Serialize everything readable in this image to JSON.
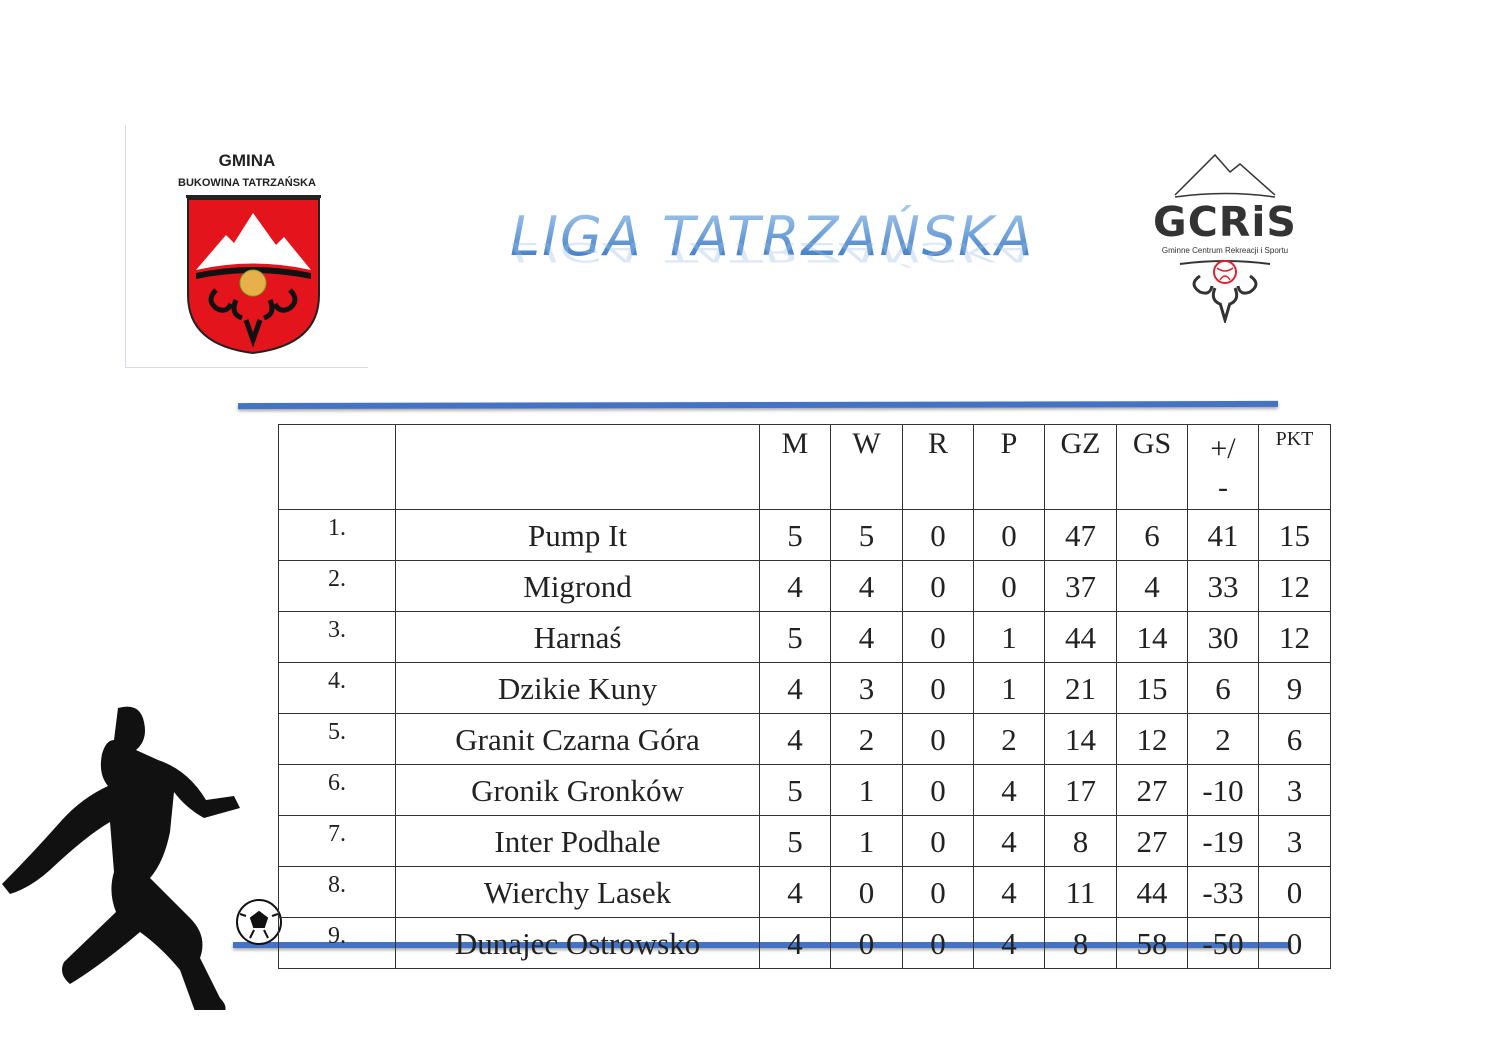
{
  "logos": {
    "left": {
      "line1": "GMINA",
      "line2": "BUKOWINA TATRZAŃSKA"
    },
    "right": {
      "name": "GCRiS",
      "subtitle": "Gminne Centrum Rekreacji i Sportu"
    }
  },
  "title": "LIGA TATRZAŃSKA",
  "colors": {
    "accent": "#4472c4",
    "title": "#2f6fbf",
    "crest": "#e3141b"
  },
  "table": {
    "headers": [
      "",
      "",
      "M",
      "W",
      "R",
      "P",
      "GZ",
      "GS",
      "+/\n-",
      "PKT"
    ],
    "rows": [
      {
        "pos": "1.",
        "team": "Pump It",
        "m": "5",
        "w": "5",
        "r": "0",
        "p": "0",
        "gz": "47",
        "gs": "6",
        "diff": "41",
        "pkt": "15"
      },
      {
        "pos": "2.",
        "team": "Migrond",
        "m": "4",
        "w": "4",
        "r": "0",
        "p": "0",
        "gz": "37",
        "gs": "4",
        "diff": "33",
        "pkt": "12"
      },
      {
        "pos": "3.",
        "team": "Harnaś",
        "m": "5",
        "w": "4",
        "r": "0",
        "p": "1",
        "gz": "44",
        "gs": "14",
        "diff": "30",
        "pkt": "12"
      },
      {
        "pos": "4.",
        "team": "Dzikie Kuny",
        "m": "4",
        "w": "3",
        "r": "0",
        "p": "1",
        "gz": "21",
        "gs": "15",
        "diff": "6",
        "pkt": "9"
      },
      {
        "pos": "5.",
        "team": "Granit Czarna Góra",
        "m": "4",
        "w": "2",
        "r": "0",
        "p": "2",
        "gz": "14",
        "gs": "12",
        "diff": "2",
        "pkt": "6"
      },
      {
        "pos": "6.",
        "team": "Gronik Gronków",
        "m": "5",
        "w": "1",
        "r": "0",
        "p": "4",
        "gz": "17",
        "gs": "27",
        "diff": "-10",
        "pkt": "3"
      },
      {
        "pos": "7.",
        "team": "Inter Podhale",
        "m": "5",
        "w": "1",
        "r": "0",
        "p": "4",
        "gz": "8",
        "gs": "27",
        "diff": "-19",
        "pkt": "3"
      },
      {
        "pos": "8.",
        "team": "Wierchy Lasek",
        "m": "4",
        "w": "0",
        "r": "0",
        "p": "4",
        "gz": "11",
        "gs": "44",
        "diff": "-33",
        "pkt": "0"
      },
      {
        "pos": "9.",
        "team": "Dunajec Ostrowsko",
        "m": "4",
        "w": "0",
        "r": "0",
        "p": "4",
        "gz": "8",
        "gs": "58",
        "diff": "-50",
        "pkt": "0"
      }
    ]
  }
}
